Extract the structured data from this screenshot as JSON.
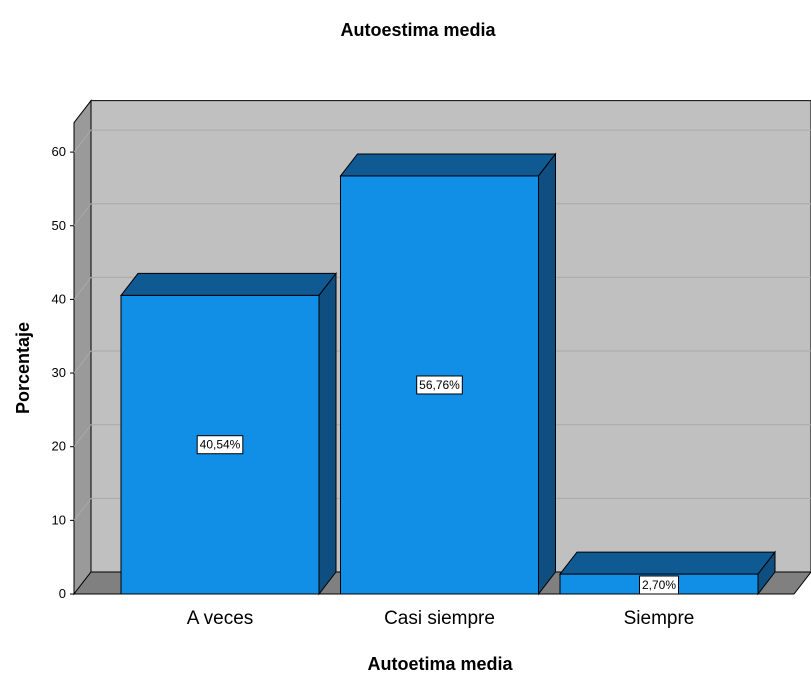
{
  "chart_data": {
    "type": "bar",
    "title": "Autoestima media",
    "xlabel": "Autoetima media",
    "ylabel": "Porcentaje",
    "categories": [
      "A veces",
      "Casi siempre",
      "Siempre"
    ],
    "values": [
      40.54,
      56.76,
      2.7
    ],
    "data_labels": [
      "40,54%",
      "56,76%",
      "2,70%"
    ],
    "ylim": [
      0,
      64
    ],
    "yticks": [
      0,
      10,
      20,
      30,
      40,
      50,
      60
    ],
    "grid": true,
    "legend": "none",
    "style": "3d"
  },
  "colors": {
    "bar_front": "#118ee6",
    "bar_top": "#0f5a93",
    "bar_side": "#0e4e80",
    "wall_back": "#c0c0c0",
    "wall_side": "#9a9a9a",
    "floor": "#808080",
    "gridline": "#a9a9a9"
  }
}
